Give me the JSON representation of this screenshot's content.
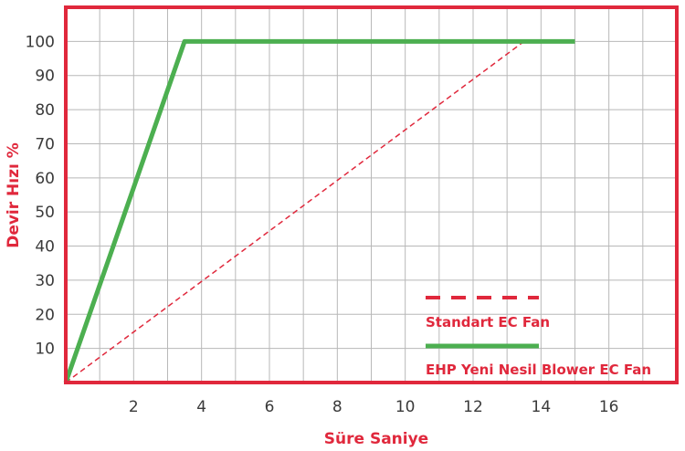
{
  "chart_data": {
    "type": "line",
    "xlabel": "Süre Saniye",
    "ylabel": "Devir Hızı %",
    "xlim": [
      0,
      18
    ],
    "ylim": [
      0,
      110
    ],
    "x_ticks": [
      2,
      4,
      6,
      8,
      10,
      12,
      14,
      16
    ],
    "y_ticks": [
      10,
      20,
      30,
      40,
      50,
      60,
      70,
      80,
      90,
      100
    ],
    "grid": true,
    "legend_position": "bottom-right",
    "series": [
      {
        "name": "Standart EC Fan",
        "style": "dashed",
        "color": "#e0283c",
        "x": [
          0,
          13.5,
          15
        ],
        "y": [
          0,
          100,
          100
        ]
      },
      {
        "name": "EHP Yeni Nesil Blower EC Fan",
        "style": "solid",
        "color": "#4caf50",
        "x": [
          0,
          3.5,
          15
        ],
        "y": [
          0,
          100,
          100
        ]
      }
    ]
  },
  "colors": {
    "frame": "#e0283c",
    "grid": "#b8b8b8",
    "tick_text": "#3a3a3a"
  }
}
